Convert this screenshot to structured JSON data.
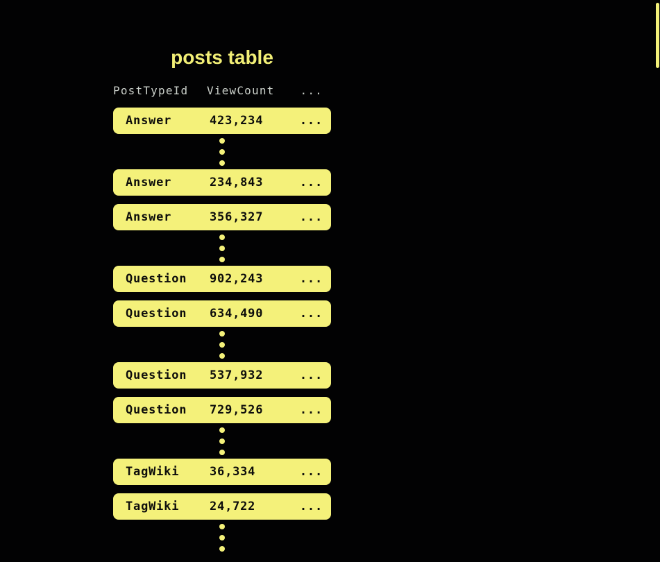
{
  "diagram": {
    "title": "posts table",
    "columns": [
      "PostTypeId",
      "ViewCount",
      "..."
    ],
    "rows": [
      {
        "post_type_id": "Answer",
        "view_count": "423,234",
        "more": "...",
        "dots_after": true
      },
      {
        "post_type_id": "Answer",
        "view_count": "234,843",
        "more": "...",
        "dots_after": false
      },
      {
        "post_type_id": "Answer",
        "view_count": "356,327",
        "more": "...",
        "dots_after": true
      },
      {
        "post_type_id": "Question",
        "view_count": "902,243",
        "more": "...",
        "dots_after": false
      },
      {
        "post_type_id": "Question",
        "view_count": "634,490",
        "more": "...",
        "dots_after": true
      },
      {
        "post_type_id": "Question",
        "view_count": "537,932",
        "more": "...",
        "dots_after": false
      },
      {
        "post_type_id": "Question",
        "view_count": "729,526",
        "more": "...",
        "dots_after": true
      },
      {
        "post_type_id": "TagWiki",
        "view_count": "36,334",
        "more": "...",
        "dots_after": false
      },
      {
        "post_type_id": "TagWiki",
        "view_count": "24,722",
        "more": "...",
        "dots_after": true
      }
    ],
    "colors": {
      "background": "#020203",
      "row_fill": "#F4F17A",
      "row_text": "#0D0D0B",
      "title_text": "#F2EF76",
      "header_text": "#CBD0CA",
      "dot": "#F4F17A",
      "scrollbar": "#F4F17A"
    }
  },
  "scrollbar": {
    "visible": true
  }
}
